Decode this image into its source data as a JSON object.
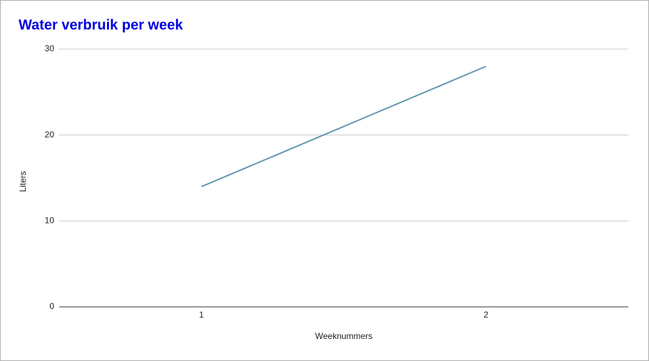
{
  "chart_data": {
    "type": "line",
    "title": "Water verbruik per week",
    "x_label": "Weeknummers",
    "y_label": "Liters",
    "categories": [
      "1",
      "2"
    ],
    "series": [
      {
        "name": "Liters",
        "color": "#6399b0",
        "values": [
          14,
          28
        ]
      }
    ],
    "ylim": [
      0,
      30
    ],
    "yticks": [
      0,
      10,
      20,
      30
    ],
    "grid": true
  }
}
